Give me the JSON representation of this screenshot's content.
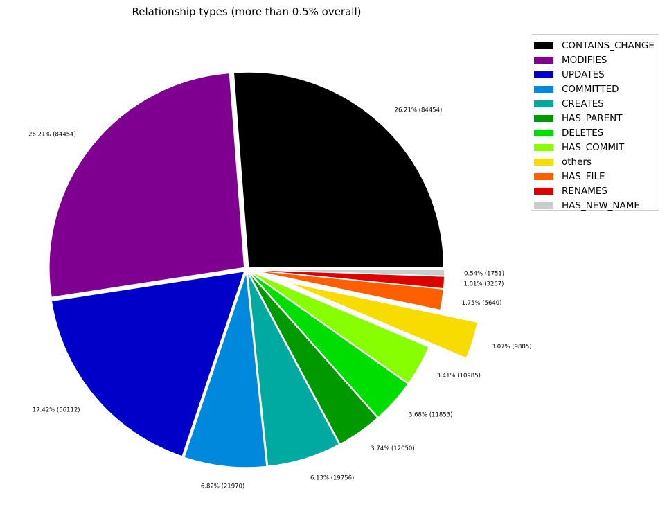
{
  "chart_data": {
    "type": "pie",
    "title": "Relationship types (more than 0.5% overall)",
    "legend_position": "top-right outside",
    "slices": [
      {
        "name": "CONTAINS_CHANGE",
        "value": 84454,
        "label": "26.21% (84454)",
        "color": "#000000",
        "explode": 0.0
      },
      {
        "name": "MODIFIES",
        "value": 84454,
        "label": "26.21% (84454)",
        "color": "#7f0090",
        "explode": 0.0
      },
      {
        "name": "UPDATES",
        "value": 56112,
        "label": "17.42% (56112)",
        "color": "#0000c8",
        "explode": 0.0
      },
      {
        "name": "COMMITTED",
        "value": 21970,
        "label": "6.82% (21970)",
        "color": "#0088dd",
        "explode": 0.0
      },
      {
        "name": "CREATES",
        "value": 19756,
        "label": "6.13% (19756)",
        "color": "#00aaa0",
        "explode": 0.0
      },
      {
        "name": "HAS_PARENT",
        "value": 12050,
        "label": "3.74% (12050)",
        "color": "#009a00",
        "explode": 0.0
      },
      {
        "name": "DELETES",
        "value": 11853,
        "label": "3.68% (11853)",
        "color": "#00dd00",
        "explode": 0.0
      },
      {
        "name": "HAS_COMMIT",
        "value": 10985,
        "label": "3.41% (10985)",
        "color": "#88ff00",
        "explode": 0.0
      },
      {
        "name": "others",
        "value": 9885,
        "label": "3.07% (9885)",
        "color": "#f8dc00",
        "explode": 0.2
      },
      {
        "name": "HAS_FILE",
        "value": 5640,
        "label": "1.75% (5640)",
        "color": "#ff5f00",
        "explode": 0.0
      },
      {
        "name": "RENAMES",
        "value": 3267,
        "label": "1.01% (3267)",
        "color": "#dd0000",
        "explode": 0.0
      },
      {
        "name": "HAS_NEW_NAME",
        "value": 1751,
        "label": "0.54% (1751)",
        "color": "#cccccc",
        "explode": 0.0
      }
    ]
  }
}
